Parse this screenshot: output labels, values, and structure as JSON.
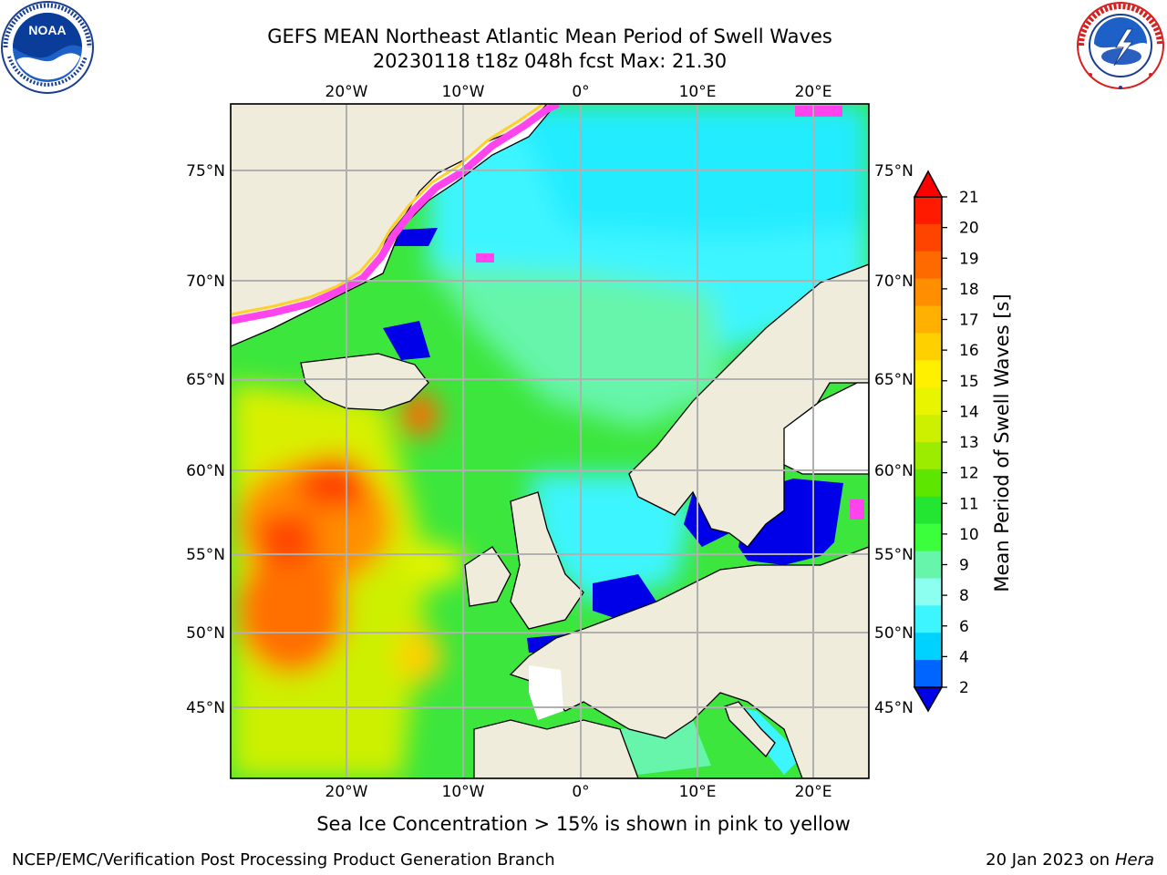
{
  "title": {
    "line1": "GEFS MEAN Northeast Atlantic Mean Period of Swell Waves",
    "line2": "20230118 t18z 048h fcst   Max: 21.30"
  },
  "map": {
    "lon_ticks_top": [
      "20°W",
      "10°W",
      "0°",
      "10°E",
      "20°E"
    ],
    "lon_ticks_bottom": [
      "20°W",
      "10°W",
      "0°",
      "10°E",
      "20°E"
    ],
    "lat_ticks_left": [
      "75°N",
      "70°N",
      "65°N",
      "60°N",
      "55°N",
      "50°N",
      "45°N"
    ],
    "lat_ticks_right": [
      "75°N",
      "70°N",
      "65°N",
      "60°N",
      "55°N",
      "50°N",
      "45°N"
    ],
    "colors": {
      "land": "#efecdc",
      "grid": "#b0b0b0",
      "ice_pink": "#ff44ee",
      "ice_yellow": "#ffd02a"
    }
  },
  "colorbar": {
    "label": "Mean Period of Swell Waves [s]",
    "ticks": [
      "21",
      "20",
      "19",
      "18",
      "17",
      "16",
      "15",
      "14",
      "13",
      "12",
      "11",
      "10",
      "9",
      "8",
      "6",
      "4",
      "2"
    ],
    "colors_top_to_bottom": [
      "#ff1a00",
      "#ff4400",
      "#ff6a00",
      "#ff8f00",
      "#ffb000",
      "#ffd000",
      "#fff000",
      "#e8f400",
      "#ccf000",
      "#9cec00",
      "#5ce600",
      "#22e632",
      "#3cff3c",
      "#66f5aa",
      "#8cfff0",
      "#3cf5ff",
      "#00d2ff",
      "#0064ff"
    ],
    "over_color": "#ff0000",
    "under_color": "#0000e8"
  },
  "footer": {
    "ice_note": "Sea Ice Concentration > 15% is shown in pink to yellow",
    "credit": "NCEP/EMC/Verification Post Processing Product Generation Branch",
    "date_text": "20 Jan 2023 on ",
    "host": "Hera"
  },
  "logos": {
    "left": "noaa-logo",
    "right": "nws-logo"
  }
}
